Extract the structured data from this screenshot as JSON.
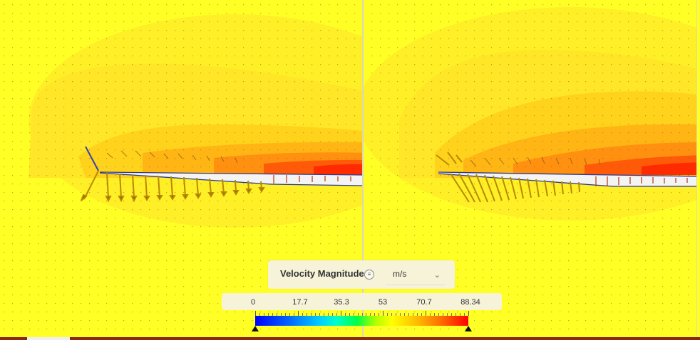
{
  "legend": {
    "title": "Velocity Magnitude",
    "menu_icon": "menu-icon",
    "unit": "m/s",
    "unit_icon": "chevron-down-icon",
    "ticks": [
      "0",
      "17.7",
      "35.3",
      "53",
      "70.7",
      "88.34"
    ],
    "min": 0,
    "max": 88.34,
    "colors": [
      "#0000ff",
      "#00ccff",
      "#00ff44",
      "#ffff00",
      "#ff6600",
      "#ff0000"
    ]
  }
}
